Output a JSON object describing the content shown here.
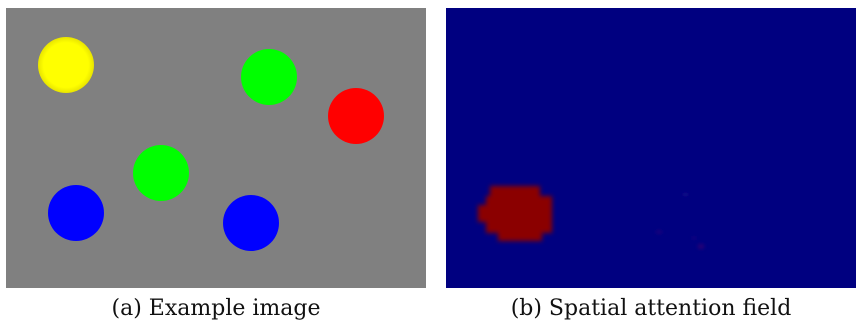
{
  "figure": {
    "subfigures": [
      {
        "caption": "(a) Example image",
        "background_color": "#808080",
        "objects": [
          {
            "shape": "circle",
            "color": "#ffff00"
          },
          {
            "shape": "circle",
            "color": "#00ff00"
          },
          {
            "shape": "circle",
            "color": "#ff0000"
          },
          {
            "shape": "circle",
            "color": "#00ff00"
          },
          {
            "shape": "circle",
            "color": "#0000ff"
          },
          {
            "shape": "circle",
            "color": "#0000ff"
          }
        ]
      },
      {
        "caption": "(b) Spatial attention field",
        "background_color": "#000080",
        "hotspot_color": "#8b0000"
      }
    ]
  }
}
